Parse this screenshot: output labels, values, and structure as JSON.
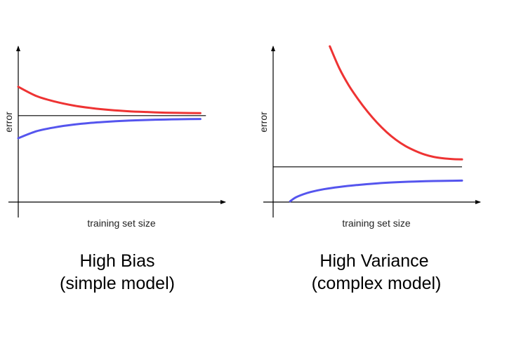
{
  "chart_data": [
    {
      "type": "line",
      "title": "High Bias",
      "subtitle": "(simple model)",
      "xlabel": "training set size",
      "ylabel": "error",
      "xlim": [
        0,
        1
      ],
      "ylim": [
        0,
        1
      ],
      "grid": false,
      "axis_ticks": false,
      "series": [
        {
          "color": "#ee3333",
          "curve": "decreasing",
          "x": [
            0.0,
            0.1,
            0.2,
            0.3,
            0.4,
            0.5,
            0.6,
            0.7,
            0.8,
            0.9,
            0.99
          ],
          "y": [
            0.74,
            0.68,
            0.645,
            0.62,
            0.603,
            0.591,
            0.583,
            0.578,
            0.574,
            0.572,
            0.571
          ]
        },
        {
          "color": "#5555ee",
          "curve": "increasing",
          "x": [
            0.0,
            0.1,
            0.2,
            0.3,
            0.4,
            0.5,
            0.6,
            0.7,
            0.8,
            0.9,
            0.99
          ],
          "y": [
            0.41,
            0.455,
            0.48,
            0.497,
            0.509,
            0.517,
            0.523,
            0.527,
            0.53,
            0.532,
            0.533
          ]
        }
      ],
      "reference_line": {
        "y": 0.555,
        "x_start": 0.0,
        "x_end": 1.02,
        "color": "#000000"
      }
    },
    {
      "type": "line",
      "title": "High Variance",
      "subtitle": "(complex model)",
      "xlabel": "training set size",
      "ylabel": "error",
      "xlim": [
        0,
        1
      ],
      "ylim": [
        0,
        1
      ],
      "grid": false,
      "axis_ticks": false,
      "series": [
        {
          "color": "#ee3333",
          "curve": "decreasing",
          "x": [
            0.3,
            0.35,
            0.4,
            0.45,
            0.5,
            0.55,
            0.6,
            0.65,
            0.7,
            0.75,
            0.8,
            0.85,
            0.9,
            0.95,
            1.0
          ],
          "y": [
            1.0,
            0.86,
            0.75,
            0.66,
            0.58,
            0.51,
            0.45,
            0.4,
            0.36,
            0.33,
            0.306,
            0.29,
            0.281,
            0.276,
            0.274
          ]
        },
        {
          "color": "#5555ee",
          "curve": "increasing",
          "x": [
            0.09,
            0.12,
            0.16,
            0.2,
            0.27,
            0.35,
            0.45,
            0.55,
            0.65,
            0.75,
            0.85,
            0.95,
            1.0
          ],
          "y": [
            0.005,
            0.03,
            0.05,
            0.065,
            0.083,
            0.097,
            0.11,
            0.12,
            0.127,
            0.132,
            0.135,
            0.137,
            0.138
          ]
        }
      ],
      "reference_line": {
        "y": 0.226,
        "x_start": 0.0,
        "x_end": 1.0,
        "color": "#000000"
      }
    }
  ]
}
